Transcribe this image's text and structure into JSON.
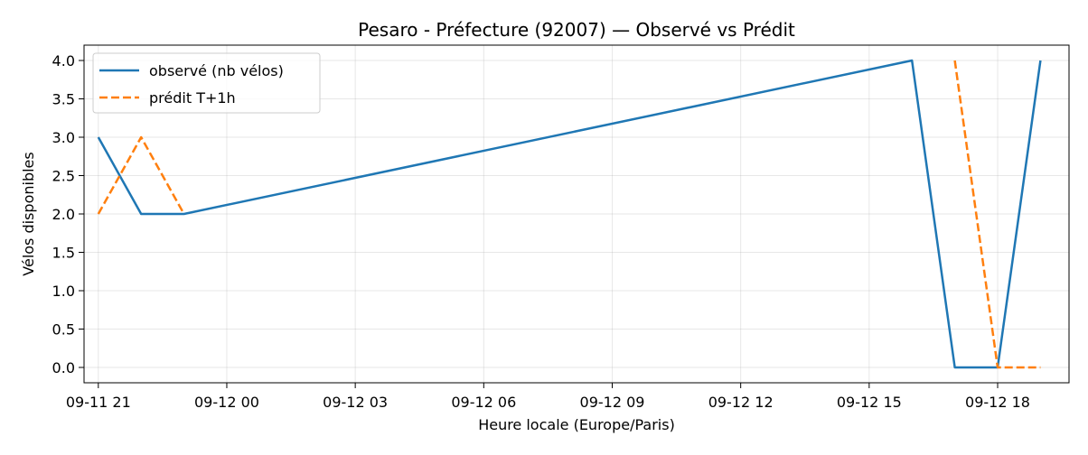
{
  "chart_data": {
    "type": "line",
    "title": "Pesaro - Préfecture (92007) — Observé vs Prédit",
    "xlabel": "Heure locale (Europe/Paris)",
    "ylabel": "Vélos disponibles",
    "x_ticks": [
      "09-11 21",
      "09-12 00",
      "09-12 03",
      "09-12 06",
      "09-12 09",
      "09-12 12",
      "09-12 15",
      "09-12 18"
    ],
    "y_ticks": [
      "0.0",
      "0.5",
      "1.0",
      "1.5",
      "2.0",
      "2.5",
      "3.0",
      "3.5",
      "4.0"
    ],
    "xlim": [
      "2025-09-11 20:40",
      "2025-09-12 19:40"
    ],
    "ylim": [
      -0.2,
      4.2
    ],
    "grid": true,
    "legend_position": "top-left",
    "series": [
      {
        "name": "observé (nb vélos)",
        "color": "#1f77b4",
        "style": "solid",
        "points": [
          {
            "x": "2025-09-11 21:00",
            "y": 3
          },
          {
            "x": "2025-09-11 22:00",
            "y": 2
          },
          {
            "x": "2025-09-11 23:00",
            "y": 2
          },
          {
            "x": "2025-09-12 16:00",
            "y": 4
          },
          {
            "x": "2025-09-12 17:00",
            "y": 0
          },
          {
            "x": "2025-09-12 18:00",
            "y": 0
          },
          {
            "x": "2025-09-12 19:00",
            "y": 4
          }
        ]
      },
      {
        "name": "prédit T+1h",
        "color": "#ff7f0e",
        "style": "dashed",
        "points": [
          {
            "x": "2025-09-11 21:00",
            "y": 2
          },
          {
            "x": "2025-09-11 22:00",
            "y": 3
          },
          {
            "x": "2025-09-11 23:00",
            "y": 2
          },
          {
            "x": null,
            "y": null
          },
          {
            "x": "2025-09-12 17:00",
            "y": 4
          },
          {
            "x": "2025-09-12 18:00",
            "y": 0
          },
          {
            "x": "2025-09-12 19:00",
            "y": 0
          }
        ]
      }
    ]
  }
}
